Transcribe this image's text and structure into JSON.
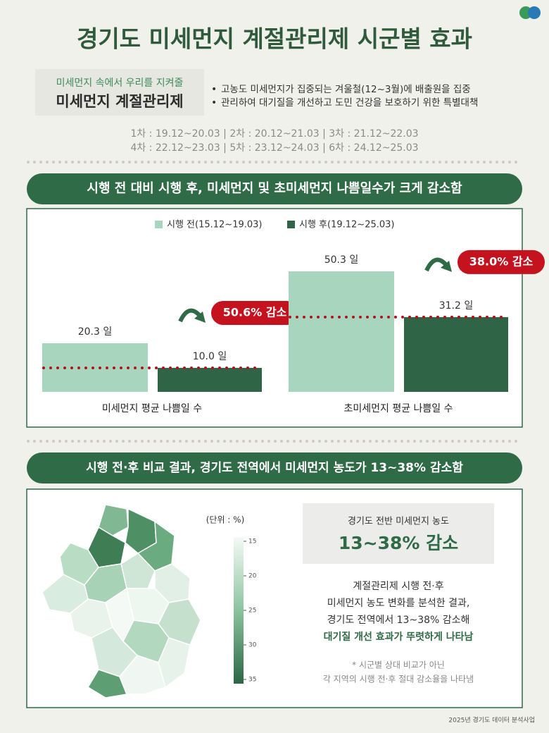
{
  "title": "경기도 미세먼지 계절관리제 시군별 효과",
  "intro": {
    "tagline": "미세먼지 속에서 우리를 지켜줄",
    "name": "미세먼지 계절관리제",
    "bullets": [
      "고농도 미세먼지가 집중되는 겨울철(12~3월)에 배출원을 집중",
      "관리하여 대기질을 개선하고 도민 건강을 보호하기 위한 특별대책"
    ]
  },
  "phases": [
    "1차 : 19.12~20.03 | 2차 : 20.12~21.03 | 3차 : 21.12~22.03",
    "4차 : 22.12~23.03 | 5차 : 23.12~24.03 | 6차 : 24.12~25.03"
  ],
  "section1": {
    "heading": "시행 전 대비 시행 후, 미세먼지 및 초미세먼지 나쁨일수가 크게 감소함"
  },
  "chart_data": {
    "type": "bar",
    "categories": [
      "미세먼지 평균 나쁨일 수",
      "초미세먼지 평균 나쁨일 수"
    ],
    "series": [
      {
        "name": "시행 전(15.12~19.03)",
        "color": "#a8d5bd",
        "values": [
          20.3,
          50.3
        ],
        "value_labels": [
          "20.3 일",
          "50.3 일"
        ]
      },
      {
        "name": "시행 후(19.12~25.03)",
        "color": "#2f6447",
        "values": [
          10.0,
          31.2
        ],
        "value_labels": [
          "10.0 일",
          "31.2 일"
        ]
      }
    ],
    "annotations": [
      "50.6% 감소",
      "38.0% 감소"
    ]
  },
  "section2": {
    "heading": "시행 전·후 비교 결과, 경기도 전역에서 미세먼지 농도가 13~38% 감소함",
    "map_legend": {
      "unit": "(단위 : %)",
      "ticks": [
        15,
        20,
        25,
        30,
        35
      ]
    },
    "summary": {
      "label": "경기도 전반 미세먼지 농도",
      "value": "13~38% 감소"
    },
    "description": [
      "계절관리제 시행 전·후",
      "미세먼지 농도 변화를 분석한 결과,",
      "경기도 전역에서 13~38% 감소해",
      "대기질 개선 효과가 뚜렷하게 나타남"
    ],
    "note": [
      "* 시군별 상대 비교가 아닌",
      "각 지역의 시행 전·후 절대 감소율을 나타냄"
    ]
  },
  "footer": "2025년 경기도 데이터 분석사업"
}
